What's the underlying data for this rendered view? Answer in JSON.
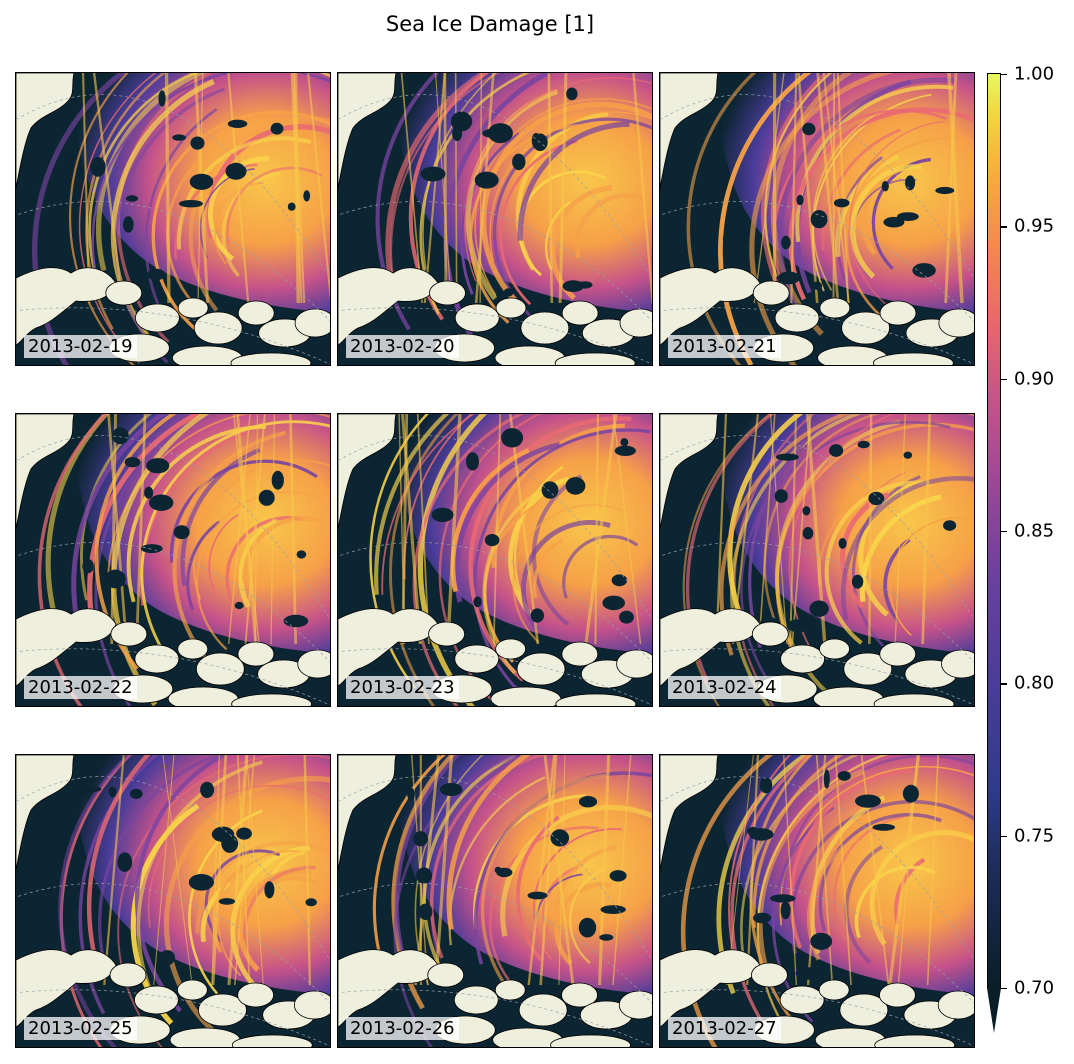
{
  "title": "Sea Ice Damage [1]",
  "panels": [
    {
      "date": "2013-02-19"
    },
    {
      "date": "2013-02-20"
    },
    {
      "date": "2013-02-21"
    },
    {
      "date": "2013-02-22"
    },
    {
      "date": "2013-02-23"
    },
    {
      "date": "2013-02-24"
    },
    {
      "date": "2013-02-25"
    },
    {
      "date": "2013-02-26"
    },
    {
      "date": "2013-02-27"
    }
  ],
  "colorbar": {
    "min": 0.7,
    "max": 1.0,
    "extend": "min",
    "ticks": [
      "1.00",
      "0.95",
      "0.90",
      "0.85",
      "0.80",
      "0.75",
      "0.70"
    ],
    "colormap": [
      "#0a1e28",
      "#2f3b8c",
      "#6b409e",
      "#c4528a",
      "#f6874e",
      "#f2d23d",
      "#e9f85e"
    ]
  },
  "colors": {
    "ocean_dark": "#0c2532",
    "land": "#efefde"
  }
}
